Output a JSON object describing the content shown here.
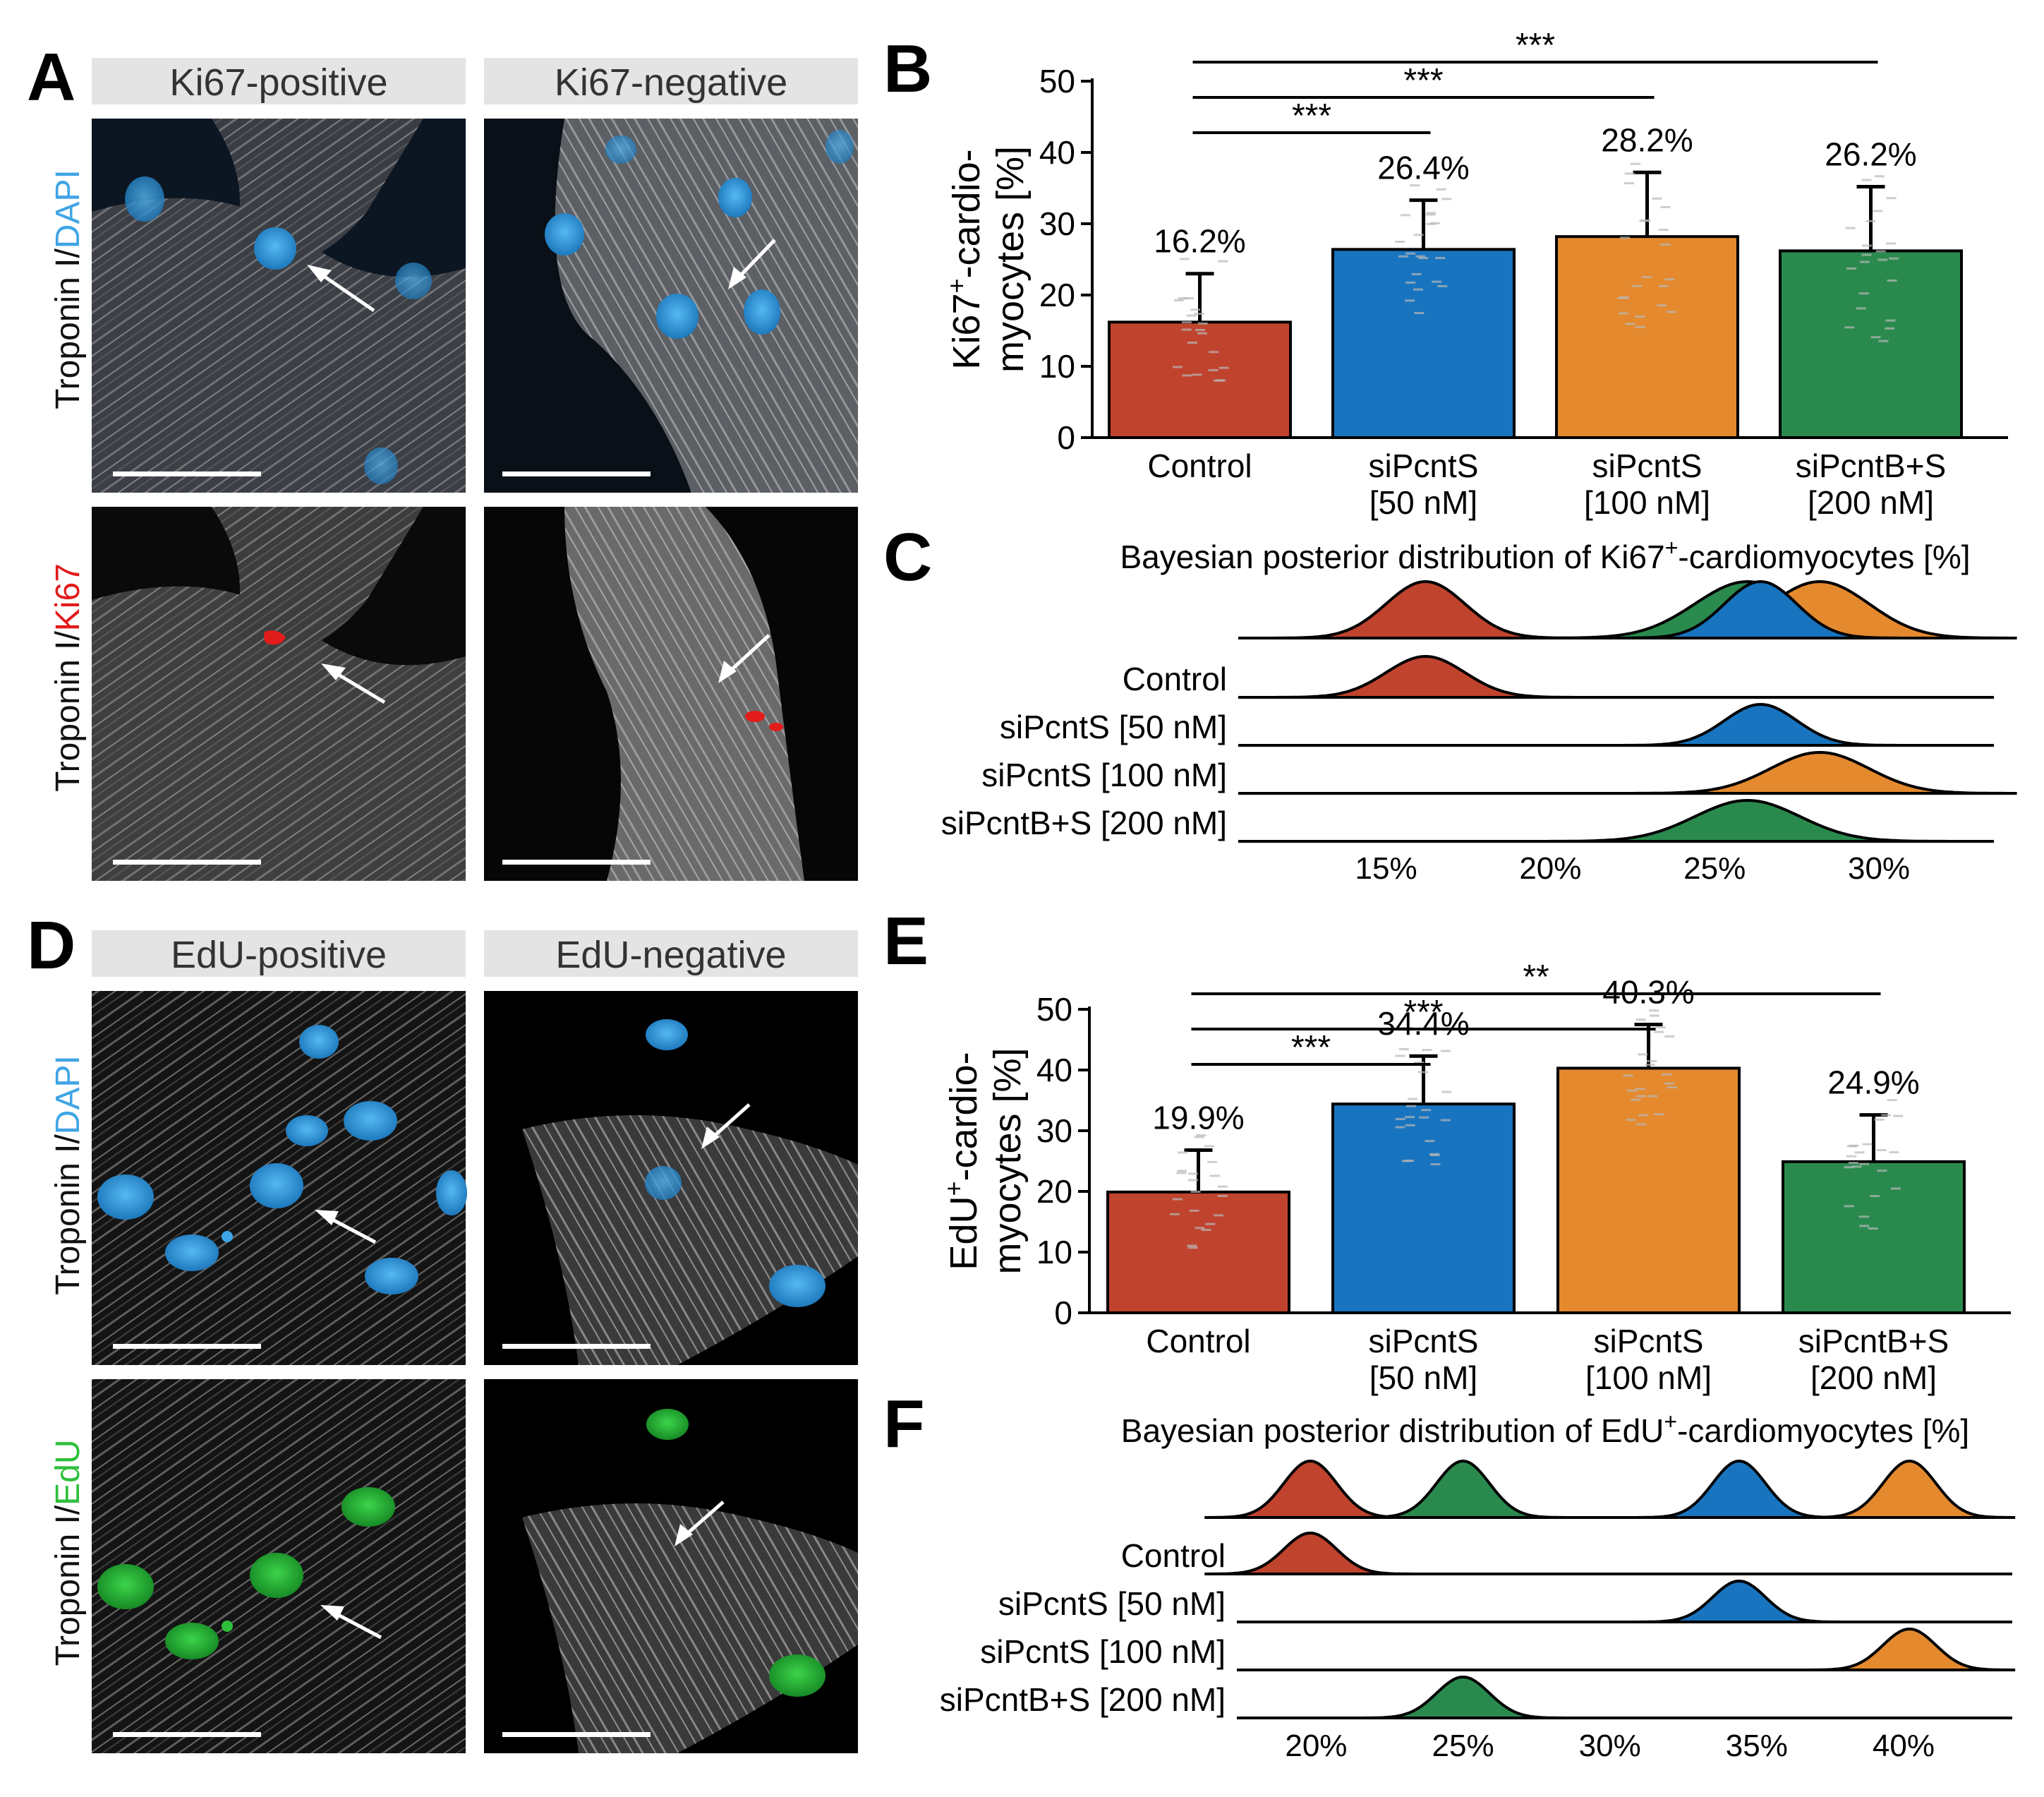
{
  "colors": {
    "control": "#c0432e",
    "pcnt50": "#1874bf",
    "pcnt100": "#e4892e",
    "pcntBS": "#2a8a4e",
    "dapi": "#3fa4e6",
    "ki67": "#e21b1b",
    "edu": "#2fbf3c",
    "header_bg": "#e4e4e4"
  },
  "micro_top": {
    "panel_letter": "A",
    "headers": [
      "Ki67-positive",
      "Ki67-negative"
    ],
    "row_labels": [
      {
        "prefix": "Troponin I/",
        "channel": "DAPI"
      },
      {
        "prefix": "Troponin I/",
        "channel": "Ki67"
      }
    ]
  },
  "micro_bottom": {
    "panel_letter": "D",
    "headers": [
      "EdU-positive",
      "EdU-negative"
    ],
    "row_labels": [
      {
        "prefix": "Troponin I/",
        "channel": "DAPI"
      },
      {
        "prefix": "Troponin I/",
        "channel": "EdU"
      }
    ]
  },
  "chart_data": [
    {
      "panel": "B",
      "type": "bar",
      "categories": [
        [
          "Control"
        ],
        [
          "siPcntS",
          "[50 nM]"
        ],
        [
          "siPcntS",
          "[100 nM]"
        ],
        [
          "siPcntB+S",
          "[200 nM]"
        ]
      ],
      "values": [
        16.2,
        26.4,
        28.2,
        26.2
      ],
      "error_upper": [
        23.0,
        33.3,
        37.2,
        35.2
      ],
      "value_labels": [
        "16.2%",
        "26.4%",
        "28.2%",
        "26.2%"
      ],
      "ylabel_line1": "Ki67",
      "ylabel_sup": "+",
      "ylabel_line1_rest": "-cardio-",
      "ylabel_line2": "myocytes [%]",
      "ylim": [
        0,
        50
      ],
      "yticks": [
        0,
        10,
        20,
        30,
        40,
        50
      ],
      "ytick_labels": [
        "0",
        "10",
        "20",
        "30",
        "40",
        "50"
      ],
      "significance": [
        {
          "from": 0,
          "to": 1,
          "label": "***"
        },
        {
          "from": 0,
          "to": 2,
          "label": "***"
        },
        {
          "from": 0,
          "to": 3,
          "label": "***"
        }
      ]
    },
    {
      "panel": "C",
      "type": "ridgeline",
      "title_pre": "Bayesian posterior distribution of Ki67",
      "title_sup": "+",
      "title_post": "-cardiomyocytes [%]",
      "xlim": [
        10.5,
        33.5
      ],
      "xticks": [
        15,
        20,
        25,
        30
      ],
      "xtick_labels": [
        "15%",
        "20%",
        "25%",
        "30%"
      ],
      "series": [
        {
          "name": "Control",
          "mean": 16.2,
          "sd": 1.2
        },
        {
          "name": "siPcntS [50 nM]",
          "mean": 26.4,
          "sd": 1.1
        },
        {
          "name": "siPcntS [100 nM]",
          "mean": 28.2,
          "sd": 1.5
        },
        {
          "name": "siPcntB+S [200 nM]",
          "mean": 26.0,
          "sd": 1.6
        }
      ],
      "overlay_order": [
        0,
        3,
        2,
        1
      ]
    },
    {
      "panel": "E",
      "type": "bar",
      "categories": [
        [
          "Control"
        ],
        [
          "siPcntS",
          "[50 nM]"
        ],
        [
          "siPcntS",
          "[100 nM]"
        ],
        [
          "siPcntB+S",
          "[200 nM]"
        ]
      ],
      "values": [
        19.9,
        34.4,
        40.3,
        24.9
      ],
      "error_upper": [
        26.8,
        42.3,
        47.5,
        32.6
      ],
      "value_labels": [
        "19.9%",
        "34.4%",
        "40.3%",
        "24.9%"
      ],
      "ylabel_line1": "EdU",
      "ylabel_sup": "+",
      "ylabel_line1_rest": "-cardio-",
      "ylabel_line2": "myocytes [%]",
      "ylim": [
        0,
        50
      ],
      "yticks": [
        0,
        10,
        20,
        30,
        40,
        50
      ],
      "ytick_labels": [
        "0",
        "10",
        "20",
        "30",
        "40",
        "50"
      ],
      "significance": [
        {
          "from": 0,
          "to": 1,
          "label": "***"
        },
        {
          "from": 0,
          "to": 2,
          "label": "***"
        },
        {
          "from": 0,
          "to": 3,
          "label": "**"
        }
      ]
    },
    {
      "panel": "F",
      "type": "ridgeline",
      "title_pre": "Bayesian posterior distribution of EdU",
      "title_sup": "+",
      "title_post": "-cardiomyocytes [%]",
      "xlim": [
        17.3,
        43.7
      ],
      "xticks": [
        20,
        25,
        30,
        35,
        40
      ],
      "xtick_labels": [
        "20%",
        "25%",
        "30%",
        "35%",
        "40%"
      ],
      "series": [
        {
          "name": "Control",
          "mean": 19.8,
          "sd": 0.9
        },
        {
          "name": "siPcntS [50 nM]",
          "mean": 34.4,
          "sd": 0.9
        },
        {
          "name": "siPcntS [100 nM]",
          "mean": 40.2,
          "sd": 0.9
        },
        {
          "name": "siPcntB+S [200 nM]",
          "mean": 25.0,
          "sd": 0.9
        }
      ],
      "overlay_order": [
        0,
        3,
        1,
        2
      ]
    }
  ]
}
